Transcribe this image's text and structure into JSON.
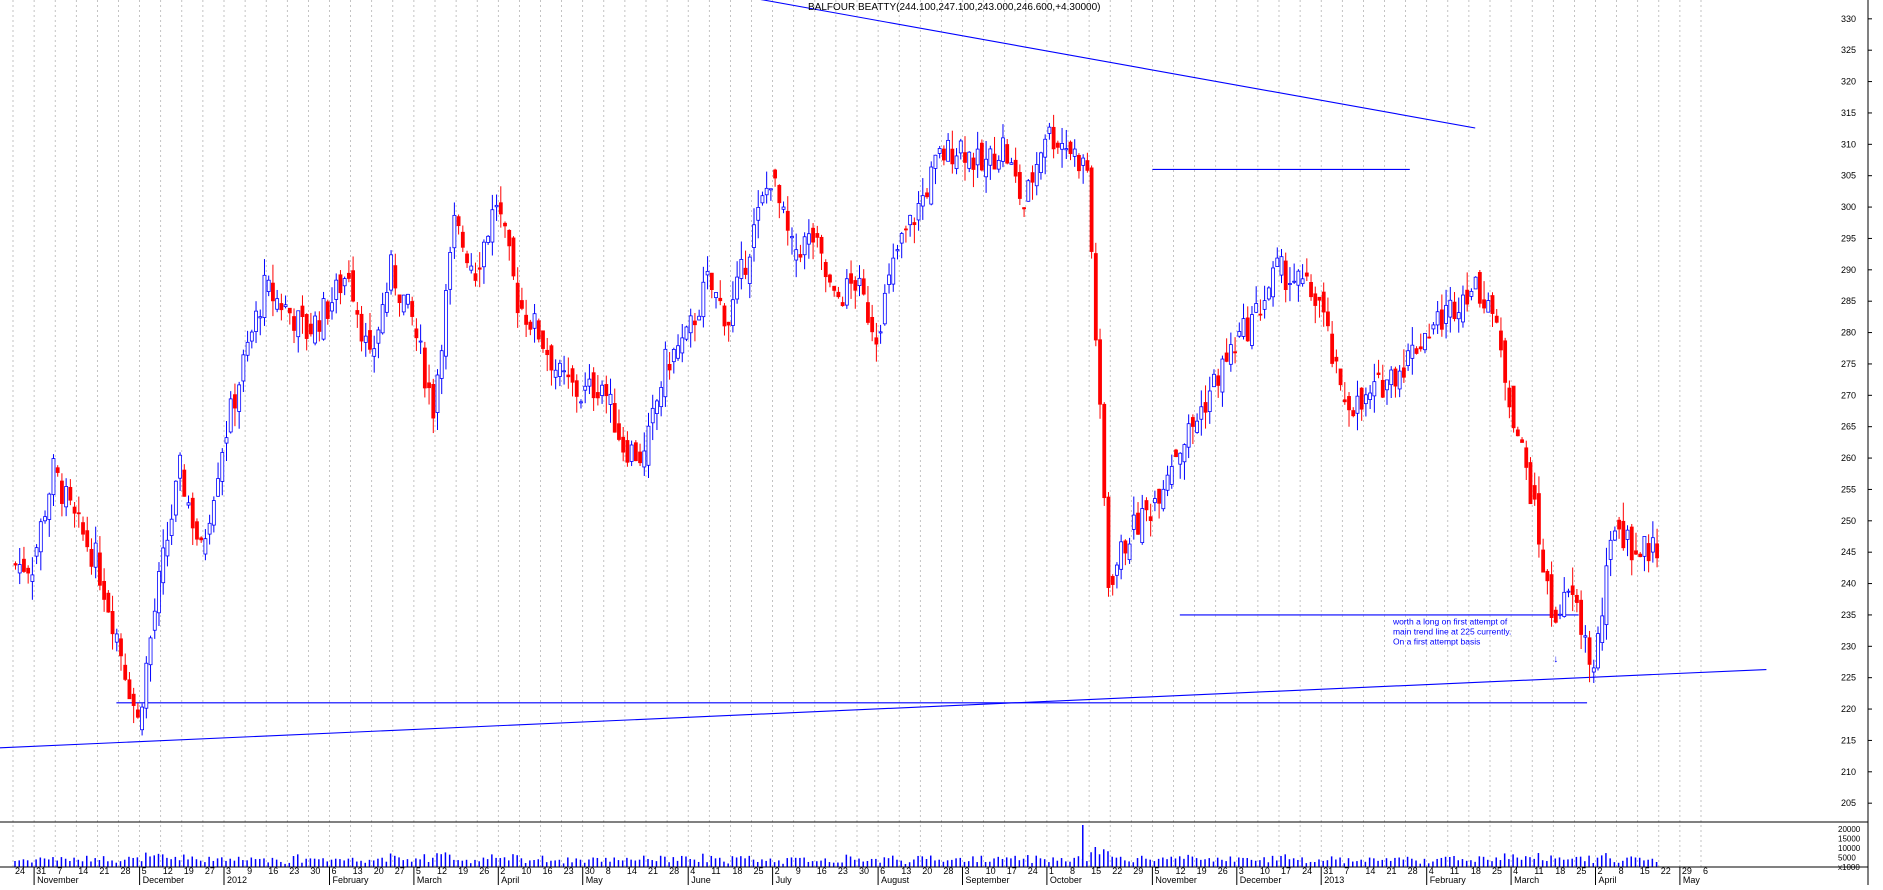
{
  "chart_data": {
    "type": "candlestick",
    "title": "BALFOUR BEATTY(244.100,247.100,243.000,246.600,+4.30000)",
    "price_axis": {
      "ylim": [
        202,
        333
      ],
      "ticks": [
        205,
        210,
        215,
        220,
        225,
        230,
        235,
        240,
        245,
        250,
        255,
        260,
        265,
        270,
        275,
        280,
        285,
        290,
        295,
        300,
        305,
        310,
        315,
        320,
        325,
        330
      ]
    },
    "volume_axis": {
      "ticks": [
        {
          "label": "20000",
          "value": 20000
        },
        {
          "label": "15000",
          "value": 15000
        },
        {
          "label": "10000",
          "value": 10000
        },
        {
          "label": "5000",
          "value": 5000
        },
        {
          "label": "x1000",
          "value": 0
        }
      ]
    },
    "date_ticks": [
      "24",
      "31",
      "7",
      "14",
      "21",
      "28",
      "5",
      "12",
      "19",
      "27",
      "3",
      "9",
      "16",
      "23",
      "30",
      "6",
      "13",
      "20",
      "27",
      "5",
      "12",
      "19",
      "26",
      "2",
      "10",
      "16",
      "23",
      "30",
      "8",
      "14",
      "21",
      "28",
      "4",
      "11",
      "18",
      "25",
      "2",
      "9",
      "16",
      "23",
      "30",
      "6",
      "13",
      "20",
      "28",
      "3",
      "10",
      "17",
      "24",
      "1",
      "8",
      "15",
      "22",
      "29",
      "5",
      "12",
      "19",
      "26",
      "3",
      "10",
      "17",
      "24",
      "31",
      "7",
      "14",
      "21",
      "28",
      "4",
      "11",
      "18",
      "25",
      "4",
      "11",
      "18",
      "25",
      "2",
      "8",
      "15",
      "22",
      "29",
      "6"
    ],
    "month_labels": [
      {
        "label": "November",
        "index": 1
      },
      {
        "label": "December",
        "index": 6
      },
      {
        "label": "2012",
        "index": 10
      },
      {
        "label": "February",
        "index": 15
      },
      {
        "label": "March",
        "index": 19
      },
      {
        "label": "April",
        "index": 23
      },
      {
        "label": "May",
        "index": 27
      },
      {
        "label": "June",
        "index": 32
      },
      {
        "label": "July",
        "index": 36
      },
      {
        "label": "August",
        "index": 41
      },
      {
        "label": "September",
        "index": 45
      },
      {
        "label": "October",
        "index": 49
      },
      {
        "label": "November",
        "index": 54
      },
      {
        "label": "December",
        "index": 58
      },
      {
        "label": "2013",
        "index": 62
      },
      {
        "label": "February",
        "index": 67
      },
      {
        "label": "March",
        "index": 71
      },
      {
        "label": "April",
        "index": 75
      },
      {
        "label": "May",
        "index": 79
      }
    ],
    "weekly_closes": [
      243,
      258,
      250,
      244,
      232,
      218,
      240,
      258,
      245,
      262,
      275,
      287,
      284,
      280,
      284,
      290,
      275,
      290,
      282,
      268,
      297,
      290,
      301,
      285,
      280,
      273,
      270,
      272,
      262,
      260,
      275,
      279,
      288,
      282,
      294,
      305,
      293,
      295,
      285,
      288,
      280,
      293,
      300,
      308,
      310,
      306,
      310,
      300,
      312,
      310,
      306,
      240,
      248,
      252,
      260,
      265,
      272,
      278,
      283,
      290,
      288,
      285,
      270,
      268,
      272,
      275,
      280,
      283,
      287,
      286,
      270,
      255,
      235,
      238,
      226,
      250,
      245,
      246
    ],
    "trend_lines": [
      {
        "from": [
          -2.8,
          213.5
        ],
        "to": [
          83.1,
          226.3
        ]
      },
      {
        "from": [
          31.6,
          335.4
        ],
        "to": [
          69.3,
          312.6
        ]
      },
      {
        "from": [
          54.0,
          306.0
        ],
        "to": [
          66.2,
          306.0
        ]
      },
      {
        "from": [
          4.9,
          221.0
        ],
        "to": [
          74.6,
          221.0
        ]
      },
      {
        "from": [
          55.3,
          235.0
        ],
        "to": [
          74.2,
          235.0
        ]
      }
    ],
    "annotations": [
      {
        "lines": [
          "worth a long on first attempt of",
          "main trend line at 225 currently.",
          "On a first attempt basis"
        ],
        "at": [
          65.4,
          233.5
        ]
      }
    ],
    "marker": {
      "symbol": "↓",
      "at": [
        73.0,
        227.5
      ]
    },
    "colors": {
      "up": "#0000ff",
      "down": "#ff0000",
      "lines": "#0000ff",
      "grid": "#aaaaaa"
    }
  }
}
